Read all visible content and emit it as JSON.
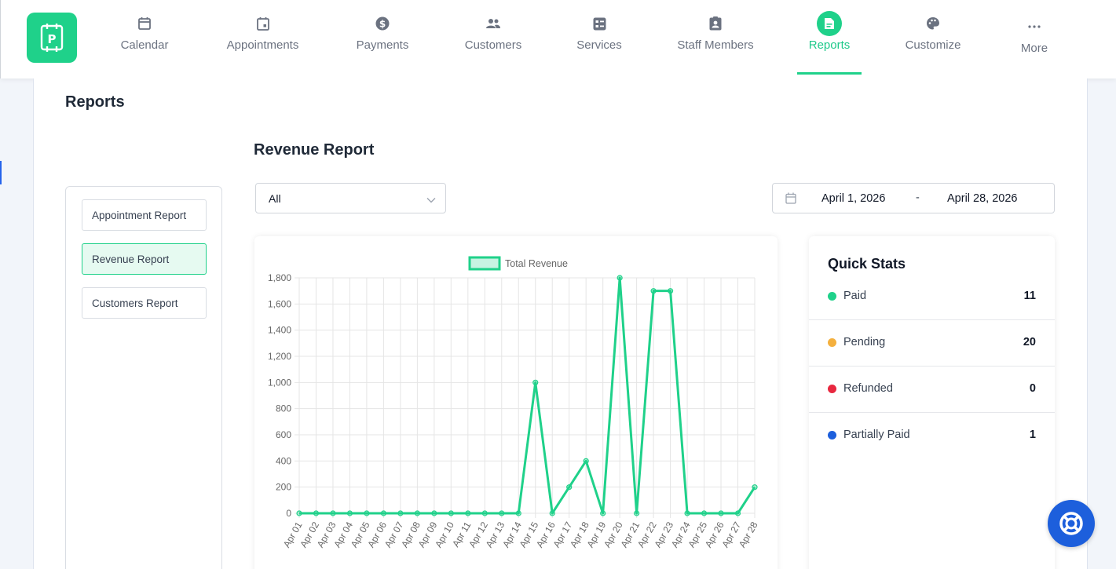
{
  "nav": {
    "items": [
      {
        "label": "Calendar",
        "icon": "calendar-icon"
      },
      {
        "label": "Appointments",
        "icon": "appointment-icon"
      },
      {
        "label": "Payments",
        "icon": "dollar-icon"
      },
      {
        "label": "Customers",
        "icon": "customers-icon"
      },
      {
        "label": "Services",
        "icon": "services-icon"
      },
      {
        "label": "Staff Members",
        "icon": "staff-badge-icon"
      },
      {
        "label": "Reports",
        "icon": "report-file-icon"
      },
      {
        "label": "Customize",
        "icon": "palette-icon"
      },
      {
        "label": "More",
        "icon": "more-dots-icon"
      }
    ],
    "active": "Reports"
  },
  "page": {
    "title": "Reports",
    "section_title": "Revenue Report"
  },
  "sidebar": {
    "items": [
      {
        "label": "Appointment Report"
      },
      {
        "label": "Revenue Report"
      },
      {
        "label": "Customers Report"
      }
    ]
  },
  "filter": {
    "selected": "All"
  },
  "date_range": {
    "start": "April 1, 2026",
    "separator": "-",
    "end": "April 28, 2026"
  },
  "colors": {
    "accent": "#1fd18a",
    "paid": "#1fd18a",
    "pending": "#f4b03e",
    "refunded": "#e8283f",
    "partially_paid": "#1d5fdc"
  },
  "chart_data": {
    "type": "line",
    "legend": [
      "Total Revenue"
    ],
    "legend_position": "top",
    "grid": true,
    "ylim": [
      0,
      1800
    ],
    "yticks": [
      "0",
      "200",
      "400",
      "600",
      "800",
      "1,000",
      "1,200",
      "1,400",
      "1,600",
      "1,800"
    ],
    "x": [
      "Apr 01",
      "Apr 02",
      "Apr 03",
      "Apr 04",
      "Apr 05",
      "Apr 06",
      "Apr 07",
      "Apr 08",
      "Apr 09",
      "Apr 10",
      "Apr 11",
      "Apr 12",
      "Apr 13",
      "Apr 14",
      "Apr 15",
      "Apr 16",
      "Apr 17",
      "Apr 18",
      "Apr 19",
      "Apr 20",
      "Apr 21",
      "Apr 22",
      "Apr 23",
      "Apr 24",
      "Apr 25",
      "Apr 26",
      "Apr 27",
      "Apr 28"
    ],
    "series": [
      {
        "name": "Total Revenue",
        "values": [
          0,
          0,
          0,
          0,
          0,
          0,
          0,
          0,
          0,
          0,
          0,
          0,
          0,
          0,
          1000,
          0,
          200,
          400,
          0,
          1800,
          0,
          1700,
          1700,
          0,
          0,
          0,
          0,
          200
        ]
      }
    ]
  },
  "quick_stats": {
    "title": "Quick Stats",
    "rows": [
      {
        "label": "Paid",
        "value": "11"
      },
      {
        "label": "Pending",
        "value": "20"
      },
      {
        "label": "Refunded",
        "value": "0"
      },
      {
        "label": "Partially Paid",
        "value": "1"
      }
    ]
  }
}
